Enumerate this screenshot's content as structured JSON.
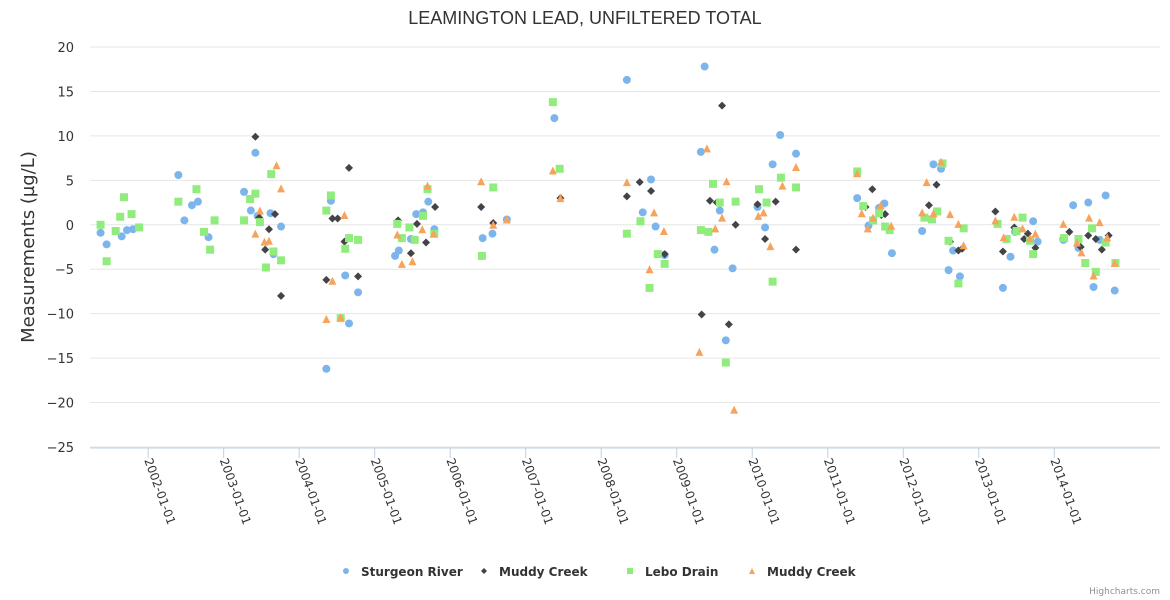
{
  "chart_data": {
    "type": "scatter",
    "title": "LEAMINGTON LEAD, UNFILTERED TOTAL",
    "xlabel": "",
    "ylabel": "Measurements (µg/L)",
    "ylim": [
      -25,
      20
    ],
    "yticks": [
      20,
      15,
      10,
      5,
      0,
      -5,
      -10,
      -15,
      -20,
      -25
    ],
    "ytick_labels": [
      "20",
      "15",
      "10",
      "5",
      "0",
      "−5",
      "−10",
      "−15",
      "−20",
      "−25"
    ],
    "xlim": [
      2001.23,
      2015.4
    ],
    "xticks": [
      2002,
      2003,
      2004,
      2005,
      2006,
      2007,
      2008,
      2009,
      2010,
      2011,
      2012,
      2013,
      2014
    ],
    "xtick_labels": [
      "2002-01-01",
      "2003-01-01",
      "2004-01-01",
      "2005-01-01",
      "2006-01-01",
      "2007-01-01",
      "2008-01-01",
      "2009-01-01",
      "2010-01-01",
      "2011-01-01",
      "2012-01-01",
      "2013-01-01",
      "2014-01-01"
    ],
    "grid": true,
    "legend": "bottom-center",
    "credits": "Highcharts.com",
    "series": [
      {
        "name": "Sturgeon River",
        "marker": "circle",
        "color": "#7cb5ec",
        "points": [
          [
            2001.37,
            -0.9
          ],
          [
            2001.45,
            -2.2
          ],
          [
            2001.65,
            -1.3
          ],
          [
            2001.72,
            -0.6
          ],
          [
            2001.8,
            -0.5
          ],
          [
            2002.4,
            5.6
          ],
          [
            2002.48,
            0.5
          ],
          [
            2002.58,
            2.2
          ],
          [
            2002.66,
            2.6
          ],
          [
            2002.8,
            -1.4
          ],
          [
            2003.27,
            3.7
          ],
          [
            2003.36,
            1.6
          ],
          [
            2003.42,
            8.1
          ],
          [
            2003.45,
            1.0
          ],
          [
            2003.62,
            1.3
          ],
          [
            2003.66,
            -3.3
          ],
          [
            2003.76,
            -0.2
          ],
          [
            2004.36,
            -16.2
          ],
          [
            2004.42,
            2.7
          ],
          [
            2004.61,
            -5.7
          ],
          [
            2004.66,
            -11.1
          ],
          [
            2004.78,
            -7.6
          ],
          [
            2005.27,
            -3.5
          ],
          [
            2005.32,
            -2.9
          ],
          [
            2005.48,
            -1.6
          ],
          [
            2005.55,
            1.2
          ],
          [
            2005.64,
            1.4
          ],
          [
            2005.71,
            2.6
          ],
          [
            2005.79,
            -0.5
          ],
          [
            2006.43,
            -1.5
          ],
          [
            2006.56,
            -1.0
          ],
          [
            2006.75,
            0.6
          ],
          [
            2007.38,
            12.0
          ],
          [
            2008.34,
            16.3
          ],
          [
            2008.55,
            1.4
          ],
          [
            2008.66,
            5.1
          ],
          [
            2008.72,
            -0.2
          ],
          [
            2008.84,
            -3.4
          ],
          [
            2009.32,
            8.2
          ],
          [
            2009.37,
            17.8
          ],
          [
            2009.5,
            -2.8
          ],
          [
            2009.57,
            1.6
          ],
          [
            2009.65,
            -13.0
          ],
          [
            2009.74,
            -4.9
          ],
          [
            2010.07,
            2.0
          ],
          [
            2010.17,
            -0.3
          ],
          [
            2010.27,
            6.8
          ],
          [
            2010.37,
            10.1
          ],
          [
            2010.58,
            8.0
          ],
          [
            2011.39,
            3.0
          ],
          [
            2011.54,
            -0.1
          ],
          [
            2011.68,
            1.9
          ],
          [
            2011.75,
            2.4
          ],
          [
            2011.85,
            -3.2
          ],
          [
            2012.25,
            -0.7
          ],
          [
            2012.4,
            6.8
          ],
          [
            2012.5,
            6.3
          ],
          [
            2012.6,
            -5.1
          ],
          [
            2012.66,
            -2.9
          ],
          [
            2012.75,
            -5.8
          ],
          [
            2013.32,
            -7.1
          ],
          [
            2013.42,
            -3.6
          ],
          [
            2013.48,
            -0.8
          ],
          [
            2013.72,
            0.4
          ],
          [
            2013.78,
            -1.9
          ],
          [
            2014.12,
            -1.7
          ],
          [
            2014.25,
            2.2
          ],
          [
            2014.32,
            -2.6
          ],
          [
            2014.45,
            2.5
          ],
          [
            2014.52,
            -7.0
          ],
          [
            2014.6,
            -1.7
          ],
          [
            2014.68,
            3.3
          ],
          [
            2014.8,
            -7.4
          ]
        ]
      },
      {
        "name": "Muddy Creek",
        "marker": "diamond",
        "color": "#434348",
        "points": [
          [
            2003.42,
            9.9
          ],
          [
            2003.47,
            0.8
          ],
          [
            2003.55,
            -2.8
          ],
          [
            2003.6,
            -0.5
          ],
          [
            2003.68,
            1.2
          ],
          [
            2003.76,
            -8.0
          ],
          [
            2004.36,
            -6.2
          ],
          [
            2004.44,
            0.7
          ],
          [
            2004.51,
            0.7
          ],
          [
            2004.6,
            -1.9
          ],
          [
            2004.66,
            6.4
          ],
          [
            2004.78,
            -5.8
          ],
          [
            2005.31,
            0.5
          ],
          [
            2005.48,
            -3.2
          ],
          [
            2005.56,
            0.1
          ],
          [
            2005.68,
            -2.0
          ],
          [
            2005.8,
            2.0
          ],
          [
            2006.41,
            2.0
          ],
          [
            2006.57,
            0.2
          ],
          [
            2007.46,
            3.0
          ],
          [
            2008.34,
            3.2
          ],
          [
            2008.51,
            4.8
          ],
          [
            2008.66,
            3.8
          ],
          [
            2008.84,
            -3.3
          ],
          [
            2009.33,
            -10.1
          ],
          [
            2009.44,
            2.7
          ],
          [
            2009.53,
            2.5
          ],
          [
            2009.6,
            13.4
          ],
          [
            2009.69,
            -11.2
          ],
          [
            2009.78,
            0.0
          ],
          [
            2010.07,
            2.3
          ],
          [
            2010.17,
            -1.6
          ],
          [
            2010.31,
            2.6
          ],
          [
            2010.58,
            -2.8
          ],
          [
            2011.59,
            4.0
          ],
          [
            2011.71,
            1.1
          ],
          [
            2011.76,
            1.2
          ],
          [
            2011.5,
            2.0
          ],
          [
            2012.34,
            2.2
          ],
          [
            2012.44,
            4.5
          ],
          [
            2012.62,
            -1.9
          ],
          [
            2012.73,
            -2.9
          ],
          [
            2012.78,
            -2.7
          ],
          [
            2013.22,
            1.5
          ],
          [
            2013.32,
            -3.0
          ],
          [
            2013.47,
            -0.3
          ],
          [
            2013.6,
            -1.6
          ],
          [
            2013.65,
            -1.0
          ],
          [
            2013.75,
            -2.6
          ],
          [
            2014.12,
            -1.5
          ],
          [
            2014.2,
            -0.8
          ],
          [
            2014.35,
            -2.5
          ],
          [
            2014.45,
            -1.2
          ],
          [
            2014.55,
            -1.6
          ],
          [
            2014.63,
            -2.8
          ],
          [
            2014.72,
            -1.2
          ]
        ]
      },
      {
        "name": "Lebo Drain",
        "marker": "square",
        "color": "#90ed7d",
        "points": [
          [
            2001.37,
            0.0
          ],
          [
            2001.45,
            -4.1
          ],
          [
            2001.57,
            -0.7
          ],
          [
            2001.63,
            0.9
          ],
          [
            2001.68,
            3.1
          ],
          [
            2001.78,
            1.2
          ],
          [
            2001.88,
            -0.3
          ],
          [
            2002.4,
            2.6
          ],
          [
            2002.64,
            4.0
          ],
          [
            2002.74,
            -0.8
          ],
          [
            2002.82,
            -2.8
          ],
          [
            2002.88,
            0.5
          ],
          [
            2003.27,
            0.5
          ],
          [
            2003.35,
            2.9
          ],
          [
            2003.42,
            3.5
          ],
          [
            2003.48,
            0.3
          ],
          [
            2003.56,
            -4.8
          ],
          [
            2003.63,
            5.7
          ],
          [
            2003.66,
            -3.0
          ],
          [
            2003.76,
            -4.0
          ],
          [
            2004.36,
            1.6
          ],
          [
            2004.42,
            3.3
          ],
          [
            2004.55,
            -10.5
          ],
          [
            2004.61,
            -2.7
          ],
          [
            2004.66,
            -1.5
          ],
          [
            2004.78,
            -1.7
          ],
          [
            2005.3,
            0.1
          ],
          [
            2005.36,
            -1.5
          ],
          [
            2005.46,
            -0.3
          ],
          [
            2005.53,
            -1.7
          ],
          [
            2005.64,
            1.0
          ],
          [
            2005.7,
            4.0
          ],
          [
            2005.79,
            -1.0
          ],
          [
            2006.42,
            -3.5
          ],
          [
            2006.57,
            4.2
          ],
          [
            2007.36,
            13.8
          ],
          [
            2007.45,
            6.3
          ],
          [
            2008.34,
            -1.0
          ],
          [
            2008.52,
            0.4
          ],
          [
            2008.64,
            -7.1
          ],
          [
            2008.75,
            -3.3
          ],
          [
            2008.84,
            -4.4
          ],
          [
            2009.32,
            -0.6
          ],
          [
            2009.42,
            -0.8
          ],
          [
            2009.48,
            4.6
          ],
          [
            2009.57,
            2.5
          ],
          [
            2009.65,
            -15.5
          ],
          [
            2009.78,
            2.6
          ],
          [
            2010.09,
            4.0
          ],
          [
            2010.19,
            2.5
          ],
          [
            2010.27,
            -6.4
          ],
          [
            2010.38,
            5.3
          ],
          [
            2010.58,
            4.2
          ],
          [
            2011.39,
            6.0
          ],
          [
            2011.47,
            2.1
          ],
          [
            2011.6,
            0.5
          ],
          [
            2011.68,
            1.3
          ],
          [
            2011.76,
            -0.2
          ],
          [
            2011.82,
            -0.6
          ],
          [
            2012.28,
            0.8
          ],
          [
            2012.38,
            0.6
          ],
          [
            2012.45,
            1.5
          ],
          [
            2012.52,
            6.9
          ],
          [
            2012.6,
            -1.8
          ],
          [
            2012.73,
            -6.6
          ],
          [
            2012.8,
            -0.4
          ],
          [
            2013.25,
            0.1
          ],
          [
            2013.37,
            -1.6
          ],
          [
            2013.5,
            -0.7
          ],
          [
            2013.58,
            0.8
          ],
          [
            2013.68,
            -1.8
          ],
          [
            2013.72,
            -3.3
          ],
          [
            2014.13,
            -1.5
          ],
          [
            2014.32,
            -1.6
          ],
          [
            2014.41,
            -4.3
          ],
          [
            2014.5,
            -0.4
          ],
          [
            2014.55,
            -5.3
          ],
          [
            2014.68,
            -2.0
          ],
          [
            2014.81,
            -4.3
          ]
        ]
      },
      {
        "name": "Muddy Creek",
        "marker": "triangle",
        "color": "#f7a35c",
        "points": [
          [
            2003.42,
            -1.0
          ],
          [
            2003.48,
            1.6
          ],
          [
            2003.54,
            -1.9
          ],
          [
            2003.6,
            -1.8
          ],
          [
            2003.7,
            6.7
          ],
          [
            2003.76,
            4.1
          ],
          [
            2004.36,
            -10.6
          ],
          [
            2004.44,
            -6.3
          ],
          [
            2004.55,
            -10.4
          ],
          [
            2004.6,
            1.1
          ],
          [
            2005.3,
            -1.1
          ],
          [
            2005.36,
            -4.4
          ],
          [
            2005.5,
            -4.1
          ],
          [
            2005.63,
            -0.5
          ],
          [
            2005.7,
            4.4
          ],
          [
            2005.78,
            -1.0
          ],
          [
            2006.41,
            4.9
          ],
          [
            2006.57,
            0.0
          ],
          [
            2006.75,
            0.6
          ],
          [
            2007.36,
            6.1
          ],
          [
            2007.46,
            3.0
          ],
          [
            2008.34,
            4.8
          ],
          [
            2008.64,
            -5.0
          ],
          [
            2008.7,
            1.4
          ],
          [
            2008.83,
            -0.7
          ],
          [
            2009.3,
            -14.3
          ],
          [
            2009.4,
            8.6
          ],
          [
            2009.51,
            -0.4
          ],
          [
            2009.6,
            0.8
          ],
          [
            2009.66,
            4.9
          ],
          [
            2009.76,
            -20.8
          ],
          [
            2010.08,
            1.0
          ],
          [
            2010.15,
            1.4
          ],
          [
            2010.24,
            -2.4
          ],
          [
            2010.4,
            4.4
          ],
          [
            2010.58,
            6.5
          ],
          [
            2011.39,
            5.8
          ],
          [
            2011.45,
            1.3
          ],
          [
            2011.53,
            -0.4
          ],
          [
            2011.6,
            0.8
          ],
          [
            2011.7,
            2.2
          ],
          [
            2011.84,
            -0.1
          ],
          [
            2012.25,
            1.4
          ],
          [
            2012.31,
            4.8
          ],
          [
            2012.4,
            1.3
          ],
          [
            2012.5,
            7.1
          ],
          [
            2012.62,
            1.2
          ],
          [
            2012.73,
            0.1
          ],
          [
            2012.8,
            -2.3
          ],
          [
            2013.22,
            0.5
          ],
          [
            2013.33,
            -1.4
          ],
          [
            2013.47,
            0.9
          ],
          [
            2013.58,
            -0.4
          ],
          [
            2013.68,
            -1.5
          ],
          [
            2013.75,
            -1.0
          ],
          [
            2014.12,
            0.1
          ],
          [
            2014.3,
            -2.0
          ],
          [
            2014.36,
            -3.1
          ],
          [
            2014.46,
            0.8
          ],
          [
            2014.52,
            -5.7
          ],
          [
            2014.6,
            0.3
          ],
          [
            2014.7,
            -1.4
          ],
          [
            2014.8,
            -4.3
          ]
        ]
      }
    ]
  }
}
